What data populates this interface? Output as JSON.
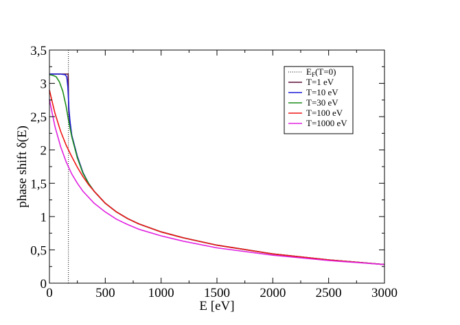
{
  "chart_data": {
    "type": "line",
    "xlabel": "E [eV]",
    "ylabel": "phase shift δ(E)",
    "xlim": [
      0,
      3000
    ],
    "ylim": [
      0,
      3.5
    ],
    "x_ticks": [
      {
        "value": 0,
        "label": "0"
      },
      {
        "value": 500,
        "label": "500"
      },
      {
        "value": 1000,
        "label": "1000"
      },
      {
        "value": 1500,
        "label": "1500"
      },
      {
        "value": 2000,
        "label": "2000"
      },
      {
        "value": 2500,
        "label": "2500"
      },
      {
        "value": 3000,
        "label": "3000"
      }
    ],
    "y_ticks": [
      {
        "value": 0,
        "label": "0"
      },
      {
        "value": 0.5,
        "label": "0,5"
      },
      {
        "value": 1,
        "label": "1"
      },
      {
        "value": 1.5,
        "label": "1,5"
      },
      {
        "value": 2,
        "label": "2"
      },
      {
        "value": 2.5,
        "label": "2,5"
      },
      {
        "value": 3,
        "label": "3"
      },
      {
        "value": 3.5,
        "label": "3,5"
      }
    ],
    "grid": false,
    "legend_position": "top-right",
    "fermi_energy": {
      "label_main": "E",
      "label_sub": "F",
      "label_tail": "(T=0)",
      "x": 170,
      "color": "#000000",
      "style": "dotted"
    },
    "series": [
      {
        "name": "T=1 eV",
        "color": "#5a0a32",
        "x": [
          0,
          50,
          100,
          150,
          168,
          172,
          180,
          200,
          250,
          300,
          350,
          400,
          500,
          600,
          700,
          800,
          1000,
          1200,
          1500,
          2000,
          2500,
          3000
        ],
        "y": [
          3.14,
          3.14,
          3.14,
          3.14,
          3.14,
          2.62,
          2.45,
          2.22,
          1.9,
          1.66,
          1.5,
          1.38,
          1.2,
          1.07,
          0.97,
          0.89,
          0.77,
          0.68,
          0.57,
          0.44,
          0.35,
          0.28
        ]
      },
      {
        "name": "T=10 eV",
        "color": "#1a1ad8",
        "x": [
          0,
          100,
          140,
          155,
          165,
          175,
          185,
          200,
          250,
          300,
          350,
          400,
          500,
          600,
          700,
          800,
          1000,
          1200,
          1500,
          2000,
          2500,
          3000
        ],
        "y": [
          3.14,
          3.14,
          3.13,
          3.1,
          2.95,
          2.6,
          2.42,
          2.22,
          1.9,
          1.66,
          1.5,
          1.38,
          1.2,
          1.07,
          0.97,
          0.89,
          0.77,
          0.68,
          0.57,
          0.44,
          0.35,
          0.28
        ]
      },
      {
        "name": "T=30 eV",
        "color": "#1a8c1a",
        "x": [
          0,
          30,
          60,
          90,
          120,
          150,
          170,
          200,
          250,
          300,
          350,
          400,
          500,
          600,
          700,
          800,
          1000,
          1200,
          1500,
          2000,
          2500,
          3000
        ],
        "y": [
          3.13,
          3.12,
          3.1,
          3.02,
          2.88,
          2.65,
          2.45,
          2.2,
          1.88,
          1.65,
          1.5,
          1.38,
          1.2,
          1.07,
          0.97,
          0.89,
          0.77,
          0.68,
          0.57,
          0.44,
          0.35,
          0.28
        ]
      },
      {
        "name": "T=100 eV",
        "color": "#f01414",
        "x": [
          0,
          25,
          50,
          100,
          150,
          200,
          250,
          300,
          350,
          400,
          500,
          600,
          700,
          800,
          1000,
          1200,
          1500,
          2000,
          2500,
          3000
        ],
        "y": [
          2.9,
          2.72,
          2.55,
          2.28,
          2.07,
          1.9,
          1.74,
          1.6,
          1.48,
          1.38,
          1.2,
          1.07,
          0.97,
          0.89,
          0.77,
          0.68,
          0.57,
          0.44,
          0.35,
          0.28
        ]
      },
      {
        "name": "T=1000 eV",
        "color": "#e020e0",
        "x": [
          0,
          25,
          50,
          100,
          150,
          200,
          250,
          300,
          400,
          500,
          600,
          700,
          800,
          1000,
          1200,
          1500,
          2000,
          2500,
          3000
        ],
        "y": [
          2.76,
          2.55,
          2.35,
          2.05,
          1.82,
          1.64,
          1.5,
          1.38,
          1.2,
          1.07,
          0.96,
          0.88,
          0.81,
          0.71,
          0.63,
          0.53,
          0.42,
          0.34,
          0.28
        ]
      }
    ]
  }
}
